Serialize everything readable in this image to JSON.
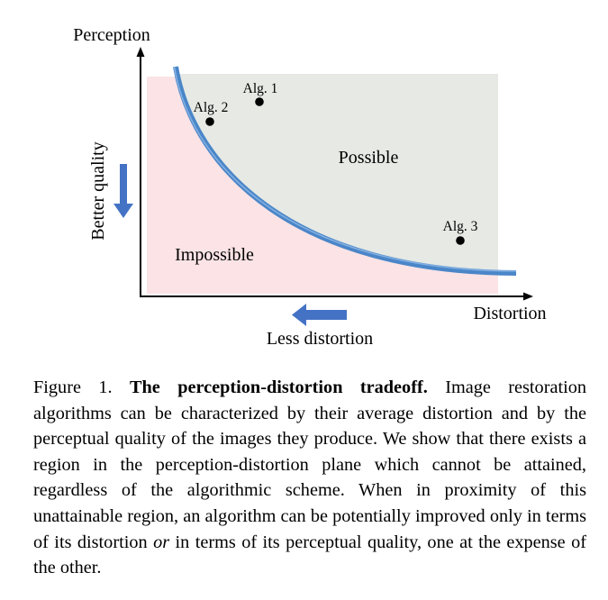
{
  "figure": {
    "y_axis_label": "Perception",
    "x_axis_label": "Distortion",
    "y_direction_label": "Better quality",
    "x_direction_label": "Less distortion",
    "region_possible_label": "Possible",
    "region_impossible_label": "Impossible",
    "colors": {
      "possible_region": "#e6e9e4",
      "impossible_region": "#fbe3e6",
      "curve": "#4a86c8",
      "curve_highlight": "#8cb6e6",
      "arrow": "#4473c5",
      "point": "#000000"
    },
    "algorithms": [
      {
        "label": "Alg. 1"
      },
      {
        "label": "Alg. 2"
      },
      {
        "label": "Alg. 3"
      }
    ]
  },
  "caption": {
    "figure_number": "Figure 1.",
    "title": "The perception-distortion tradeoff.",
    "text_part1": "Image restoration algorithms can be characterized by their average distortion and by the perceptual quality of the images they produce. We show that there exists a region in the perception-distortion plane which can­not be attained, regardless of the algorithmic scheme. When in proximity of this unattainable region, an algorithm can be poten­tially improved only in terms of its distortion",
    "emphasis": "or",
    "text_part2": "in terms of its perceptual quality, one at the expense of the other."
  }
}
